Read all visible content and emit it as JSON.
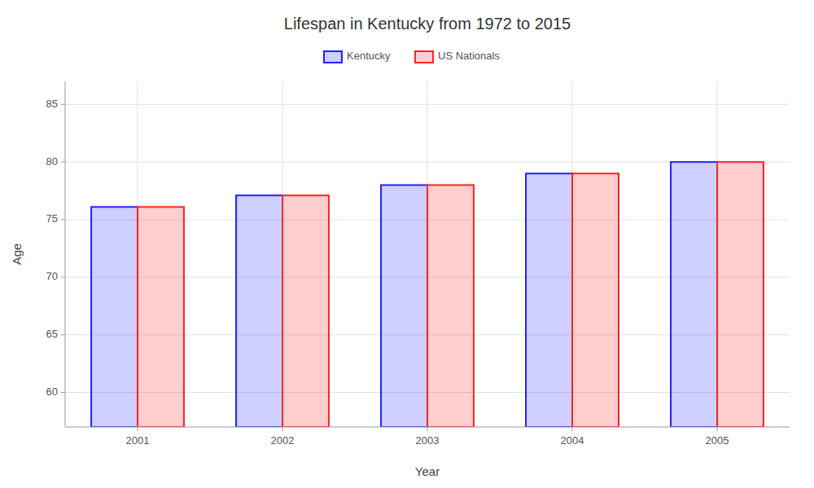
{
  "chart_data": {
    "type": "bar",
    "title": "Lifespan in Kentucky from 1972 to 2015",
    "xlabel": "Year",
    "ylabel": "Age",
    "categories": [
      "2001",
      "2002",
      "2003",
      "2004",
      "2005"
    ],
    "series": [
      {
        "name": "Kentucky",
        "color": "#2222ff",
        "values": [
          76.1,
          77.1,
          78.0,
          79.0,
          80.0
        ]
      },
      {
        "name": "US Nationals",
        "color": "#ff2222",
        "values": [
          76.1,
          77.1,
          78.0,
          79.0,
          80.0
        ]
      }
    ],
    "ylim": [
      57,
      87
    ],
    "yticks": [
      60,
      65,
      70,
      75,
      80,
      85
    ],
    "grid": true,
    "legend": "top"
  }
}
